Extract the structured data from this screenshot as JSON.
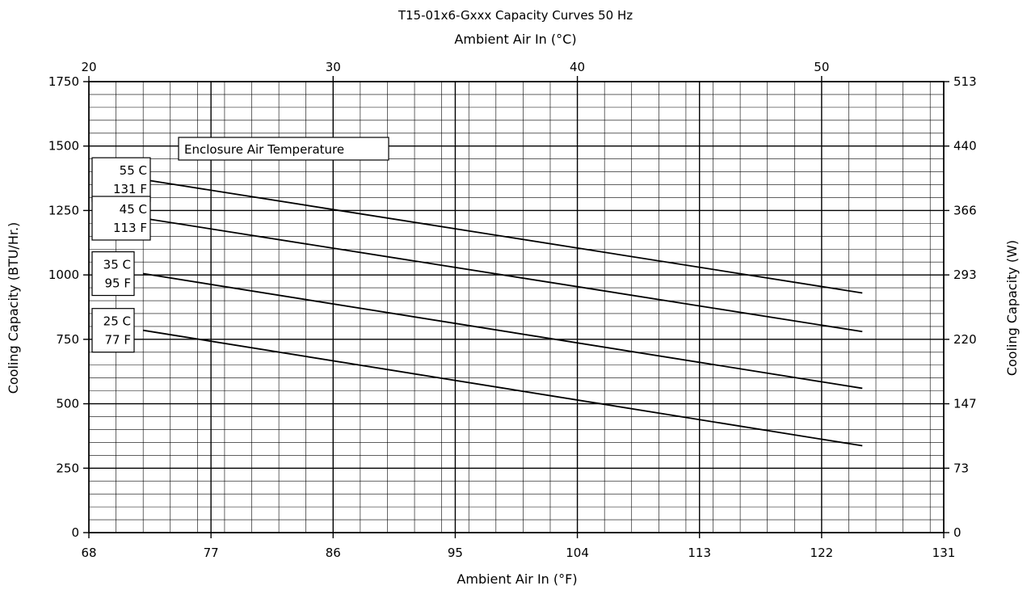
{
  "chart_data": {
    "type": "line",
    "title": "T15-01x6-Gxxx Capacity Curves 50 Hz",
    "xlabel": "Ambient Air In (°F)",
    "x2label": "Ambient Air In (°C)",
    "ylabel": "Cooling Capacity (BTU/Hr.)",
    "y2label": "Cooling Capacity (W)",
    "xlim": [
      68,
      131
    ],
    "ylim": [
      0,
      1750
    ],
    "x2lim": [
      20,
      55
    ],
    "x_ticks": [
      "68",
      "77",
      "86",
      "95",
      "104",
      "113",
      "122",
      "131"
    ],
    "x2_ticks": [
      "20",
      "30",
      "40",
      "50"
    ],
    "x2_tick_values": [
      20,
      30,
      40,
      50
    ],
    "y_ticks": [
      "0",
      "250",
      "500",
      "750",
      "1000",
      "1250",
      "1500",
      "1750"
    ],
    "y2_ticks": [
      "0",
      "73",
      "147",
      "220",
      "293",
      "366",
      "440",
      "513"
    ],
    "grid": true,
    "legend_title": "Enclosure Air Temperature",
    "series": [
      {
        "name": "55 C|131 F",
        "x": [
          72,
          125
        ],
        "y": [
          1370,
          930
        ]
      },
      {
        "name": "45 C|113 F",
        "x": [
          72,
          125
        ],
        "y": [
          1220,
          780
        ]
      },
      {
        "name": "35 C|95 F",
        "x": [
          72,
          125
        ],
        "y": [
          1005,
          560
        ]
      },
      {
        "name": "25 C|77 F",
        "x": [
          72,
          125
        ],
        "y": [
          785,
          337
        ]
      }
    ]
  }
}
